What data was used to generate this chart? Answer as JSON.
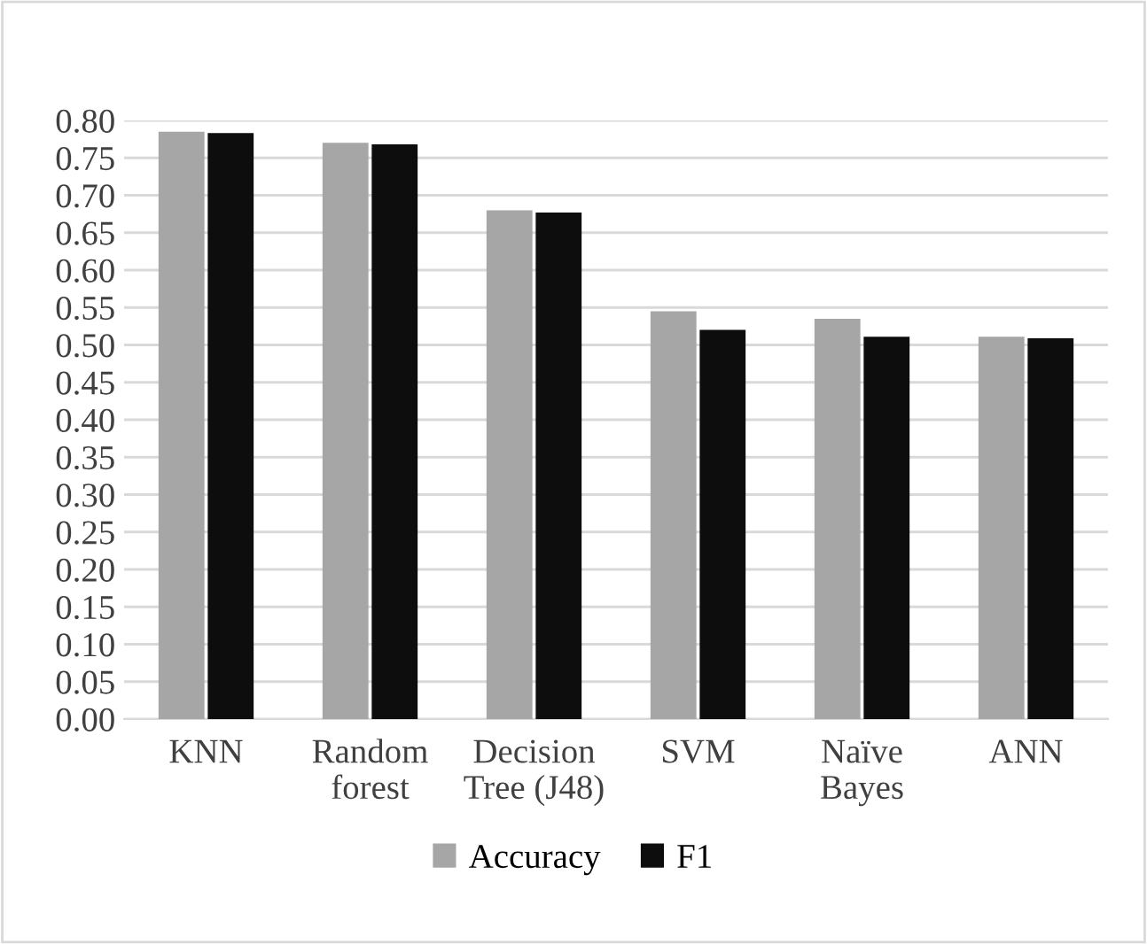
{
  "chart_data": {
    "type": "bar",
    "categories": [
      "KNN",
      "Random\nforest",
      "Decision\nTree (J48)",
      "SVM",
      "Naïve\nBayes",
      "ANN"
    ],
    "series": [
      {
        "name": "Accuracy",
        "color": "#a6a6a6",
        "values": [
          0.785,
          0.77,
          0.68,
          0.545,
          0.535,
          0.511
        ]
      },
      {
        "name": "F1",
        "color": "#0d0d0d",
        "values": [
          0.783,
          0.768,
          0.677,
          0.52,
          0.511,
          0.509
        ]
      }
    ],
    "ylim": [
      0,
      0.8
    ],
    "yticks": [
      {
        "value": 0,
        "label": "0.00"
      },
      {
        "value": 0.05,
        "label": "0.05"
      },
      {
        "value": 0.1,
        "label": "0.10"
      },
      {
        "value": 0.15,
        "label": "0.15"
      },
      {
        "value": 0.2,
        "label": "0.20"
      },
      {
        "value": 0.25,
        "label": "0.25"
      },
      {
        "value": 0.3,
        "label": "0.30"
      },
      {
        "value": 0.35,
        "label": "0.35"
      },
      {
        "value": 0.4,
        "label": "0.40"
      },
      {
        "value": 0.45,
        "label": "0.45"
      },
      {
        "value": 0.5,
        "label": "0.50"
      },
      {
        "value": 0.55,
        "label": "0.55"
      },
      {
        "value": 0.6,
        "label": "0.60"
      },
      {
        "value": 0.65,
        "label": "0.65"
      },
      {
        "value": 0.7,
        "label": "0.70"
      },
      {
        "value": 0.75,
        "label": "0.75"
      },
      {
        "value": 0.8,
        "label": "0.80"
      }
    ],
    "grid": "y",
    "legend": "bottom"
  }
}
